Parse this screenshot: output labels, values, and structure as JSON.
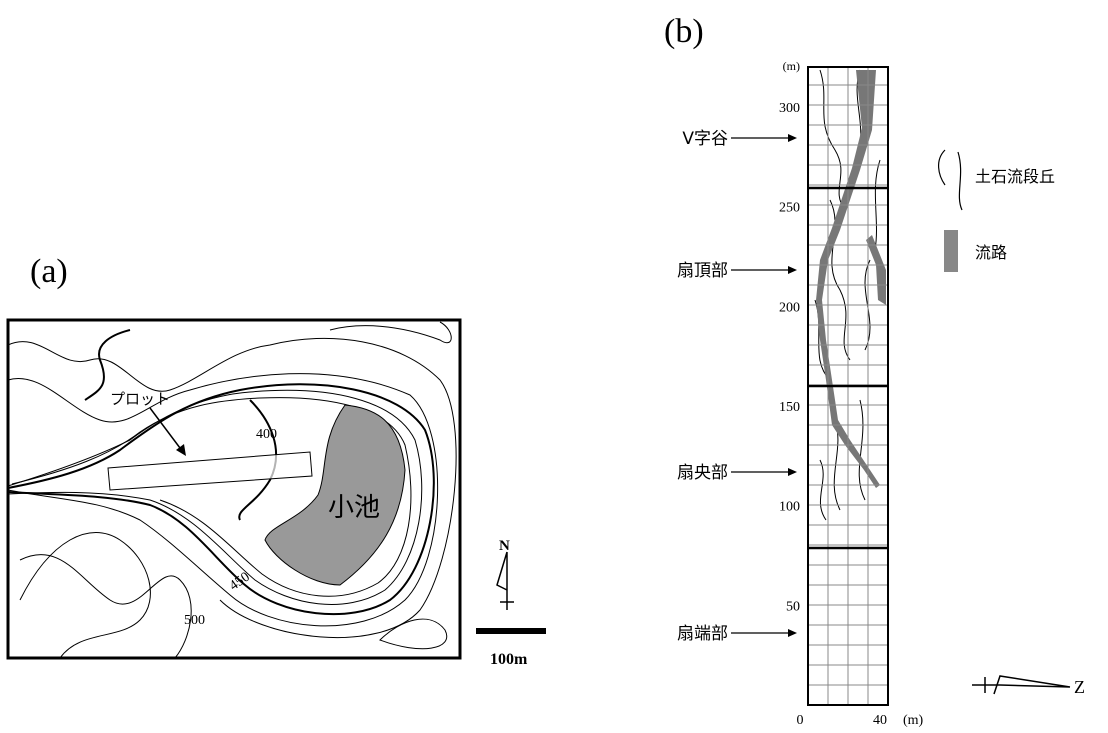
{
  "panel_a": {
    "label": "(a)",
    "plot_label": "プロット",
    "contour_labels": [
      400,
      450,
      500
    ],
    "pond_label": "小池",
    "north": "N",
    "scale_label": "100m"
  },
  "panel_b": {
    "label": "(b)",
    "axis": {
      "ylim": [
        0,
        320
      ],
      "yticks": [
        50,
        100,
        150,
        200,
        250,
        300
      ],
      "y_unit": "(m)",
      "xlim": [
        0,
        40
      ],
      "xticks": [
        0,
        40
      ],
      "x_unit": "(m)"
    },
    "zones": [
      "V字谷",
      "扇頂部",
      "扇央部",
      "扇端部"
    ],
    "legend": [
      "土石流段丘",
      "流路"
    ],
    "direction": "Z"
  }
}
